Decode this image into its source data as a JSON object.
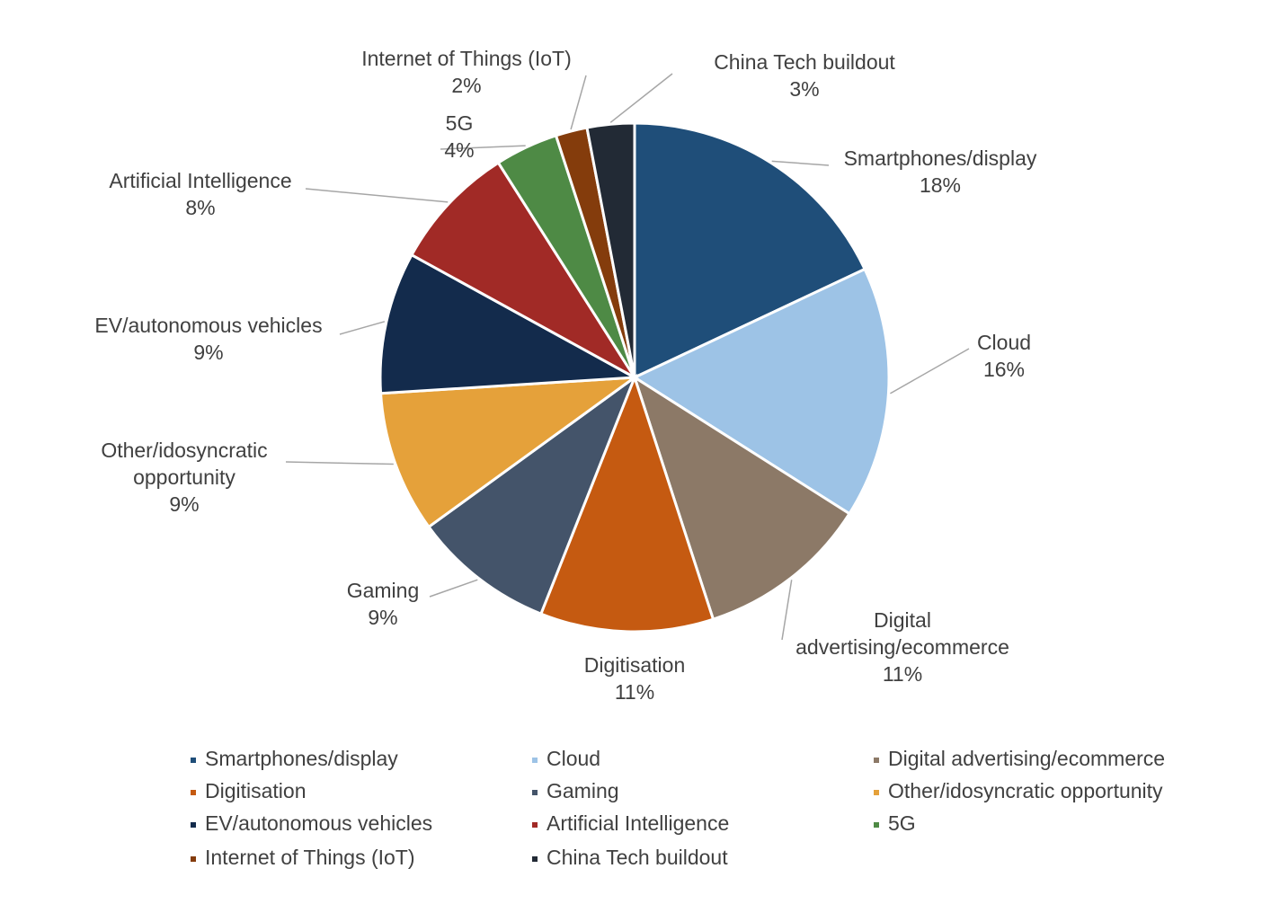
{
  "chart_data": {
    "type": "pie",
    "title": "",
    "legend_position": "bottom",
    "slices": [
      {
        "label": "Smartphones/display",
        "value": 18,
        "value_label": "18%",
        "color": "#1f4e79"
      },
      {
        "label": "Cloud",
        "value": 16,
        "value_label": "16%",
        "color": "#9dc3e6"
      },
      {
        "label": "Digital advertising/ecommerce",
        "value": 11,
        "value_label": "11%",
        "color": "#8c7967"
      },
      {
        "label": "Digitisation",
        "value": 11,
        "value_label": "11%",
        "color": "#c55a11"
      },
      {
        "label": "Gaming",
        "value": 9,
        "value_label": "9%",
        "color": "#44546a"
      },
      {
        "label": "Other/idosyncratic opportunity",
        "value": 9,
        "value_label": "9%",
        "color": "#e5a13a"
      },
      {
        "label": "EV/autonomous vehicles",
        "value": 9,
        "value_label": "9%",
        "color": "#132b4c"
      },
      {
        "label": "Artificial Intelligence",
        "value": 8,
        "value_label": "8%",
        "color": "#a12a26"
      },
      {
        "label": "5G",
        "value": 4,
        "value_label": "4%",
        "color": "#4e8a45"
      },
      {
        "label": "Internet of Things (IoT)",
        "value": 2,
        "value_label": "2%",
        "color": "#843c0c"
      },
      {
        "label": "China Tech buildout",
        "value": 3,
        "value_label": "3%",
        "color": "#222a35"
      }
    ]
  }
}
